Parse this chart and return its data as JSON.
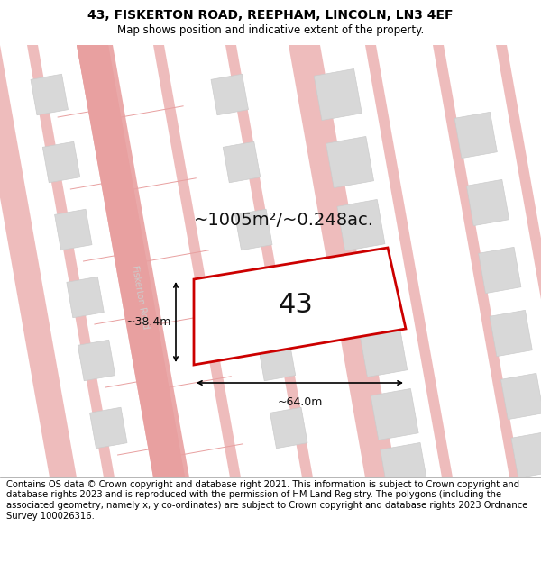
{
  "title": "43, FISKERTON ROAD, REEPHAM, LINCOLN, LN3 4EF",
  "subtitle": "Map shows position and indicative extent of the property.",
  "footer": "Contains OS data © Crown copyright and database right 2021. This information is subject to Crown copyright and database rights 2023 and is reproduced with the permission of HM Land Registry. The polygons (including the associated geometry, namely x, y co-ordinates) are subject to Crown copyright and database rights 2023 Ordnance Survey 100026316.",
  "area_label": "~1005m²/~0.248ac.",
  "plot_number": "43",
  "width_label": "~64.0m",
  "height_label": "~38.4m",
  "map_bg": "#ffffff",
  "road_stroke": "#e8a0a0",
  "road_fill": "#f5e8e8",
  "building_color": "#d8d8d8",
  "building_edge": "#cccccc",
  "highlight_color": "#cc0000",
  "road_label_color": "#cccccc",
  "title_fontsize": 10,
  "subtitle_fontsize": 8.5,
  "footer_fontsize": 7.2,
  "area_fontsize": 14,
  "plot_fontsize": 22,
  "meas_fontsize": 9
}
